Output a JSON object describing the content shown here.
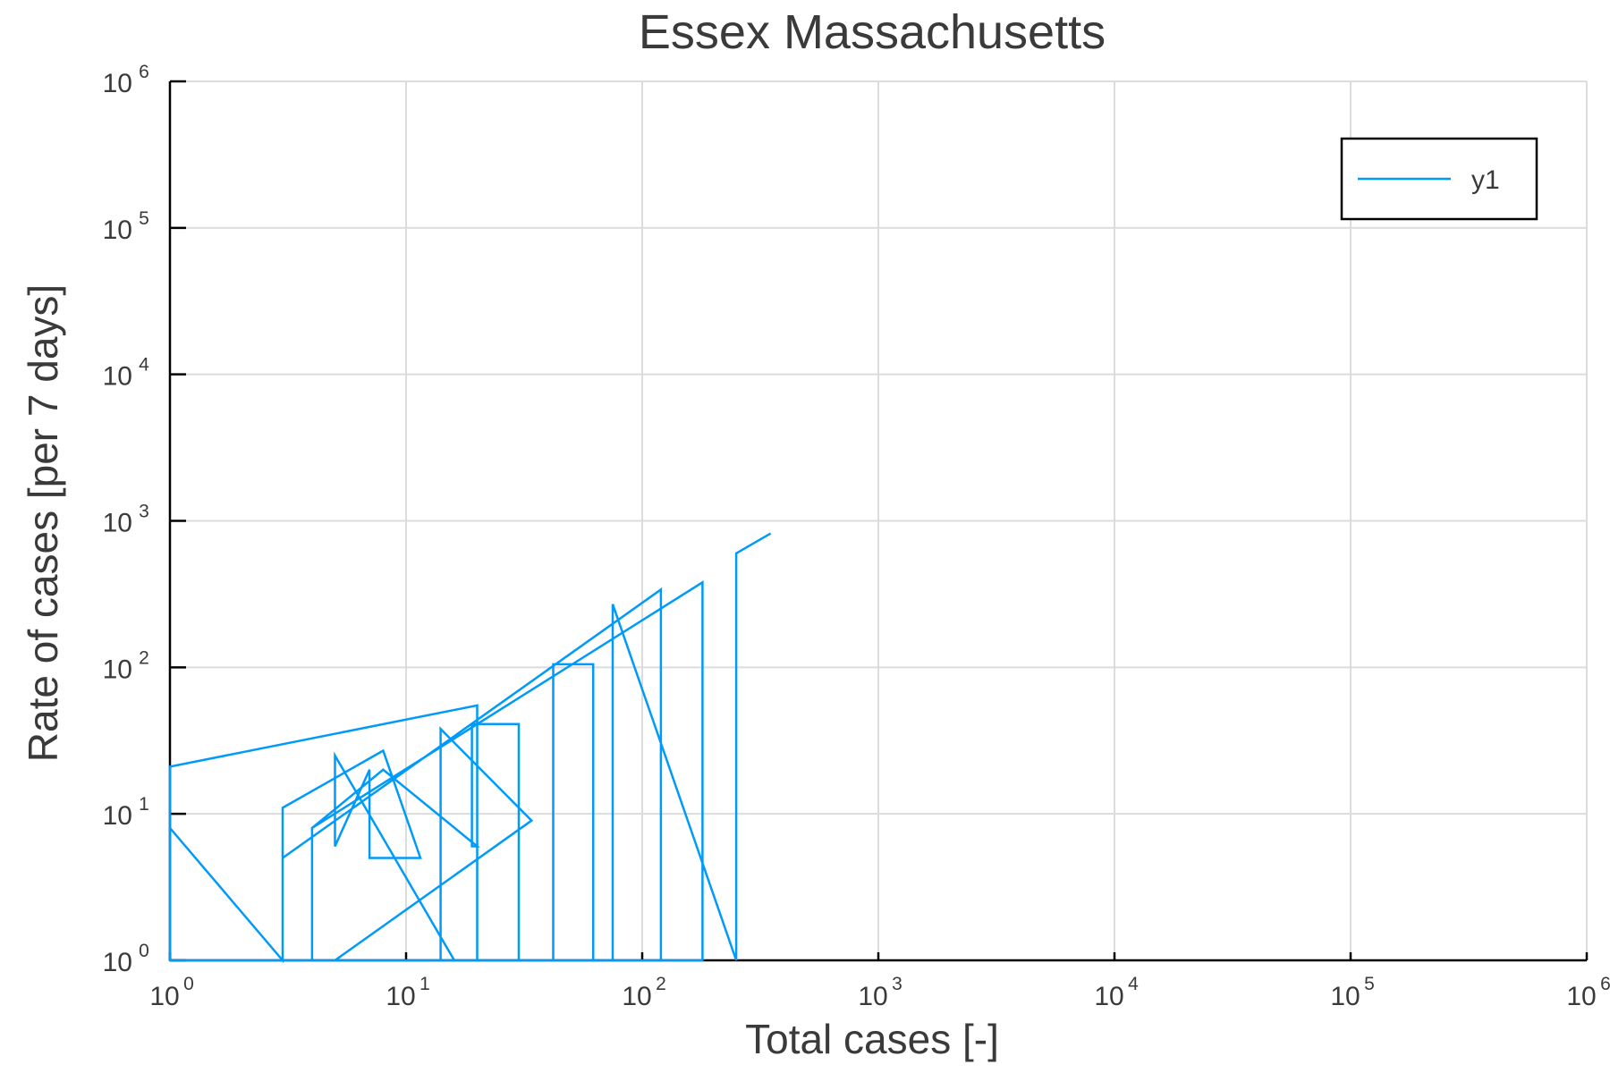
{
  "chart_data": {
    "type": "line",
    "title": "Essex Massachusetts",
    "xlabel": "Total cases [-]",
    "ylabel": "Rate of cases [per 7 days]",
    "xscale": "log",
    "yscale": "log",
    "xlim": [
      1,
      1000000
    ],
    "ylim": [
      1,
      1000000
    ],
    "xticks": [
      {
        "base": "10",
        "exp": "0"
      },
      {
        "base": "10",
        "exp": "1"
      },
      {
        "base": "10",
        "exp": "2"
      },
      {
        "base": "10",
        "exp": "3"
      },
      {
        "base": "10",
        "exp": "4"
      },
      {
        "base": "10",
        "exp": "5"
      },
      {
        "base": "10",
        "exp": "6"
      }
    ],
    "yticks": [
      {
        "base": "10",
        "exp": "0"
      },
      {
        "base": "10",
        "exp": "1"
      },
      {
        "base": "10",
        "exp": "2"
      },
      {
        "base": "10",
        "exp": "3"
      },
      {
        "base": "10",
        "exp": "4"
      },
      {
        "base": "10",
        "exp": "5"
      },
      {
        "base": "10",
        "exp": "6"
      }
    ],
    "grid": true,
    "legend_position": "top-right",
    "series": [
      {
        "name": "y1",
        "color": "#009af9",
        "x": [
          1,
          1,
          20,
          20,
          1,
          1,
          3,
          3,
          8,
          11.5,
          7,
          7,
          5,
          5,
          16,
          15,
          14,
          14,
          34,
          5,
          4,
          4,
          8,
          20,
          19,
          19,
          30,
          30,
          3,
          3,
          120,
          120,
          4,
          4,
          180,
          180,
          42,
          42,
          62,
          62,
          75,
          75,
          250,
          250,
          350
        ],
        "y": [
          1,
          21,
          55,
          1,
          1,
          8,
          1,
          11,
          27,
          5,
          5,
          20,
          6,
          25,
          1,
          1,
          1,
          38,
          9,
          1,
          1,
          8,
          20,
          6,
          6,
          41,
          41,
          1,
          1,
          5,
          340,
          1,
          1,
          8,
          380,
          1,
          1,
          105,
          105,
          1,
          1,
          270,
          1,
          600,
          820
        ]
      }
    ]
  }
}
